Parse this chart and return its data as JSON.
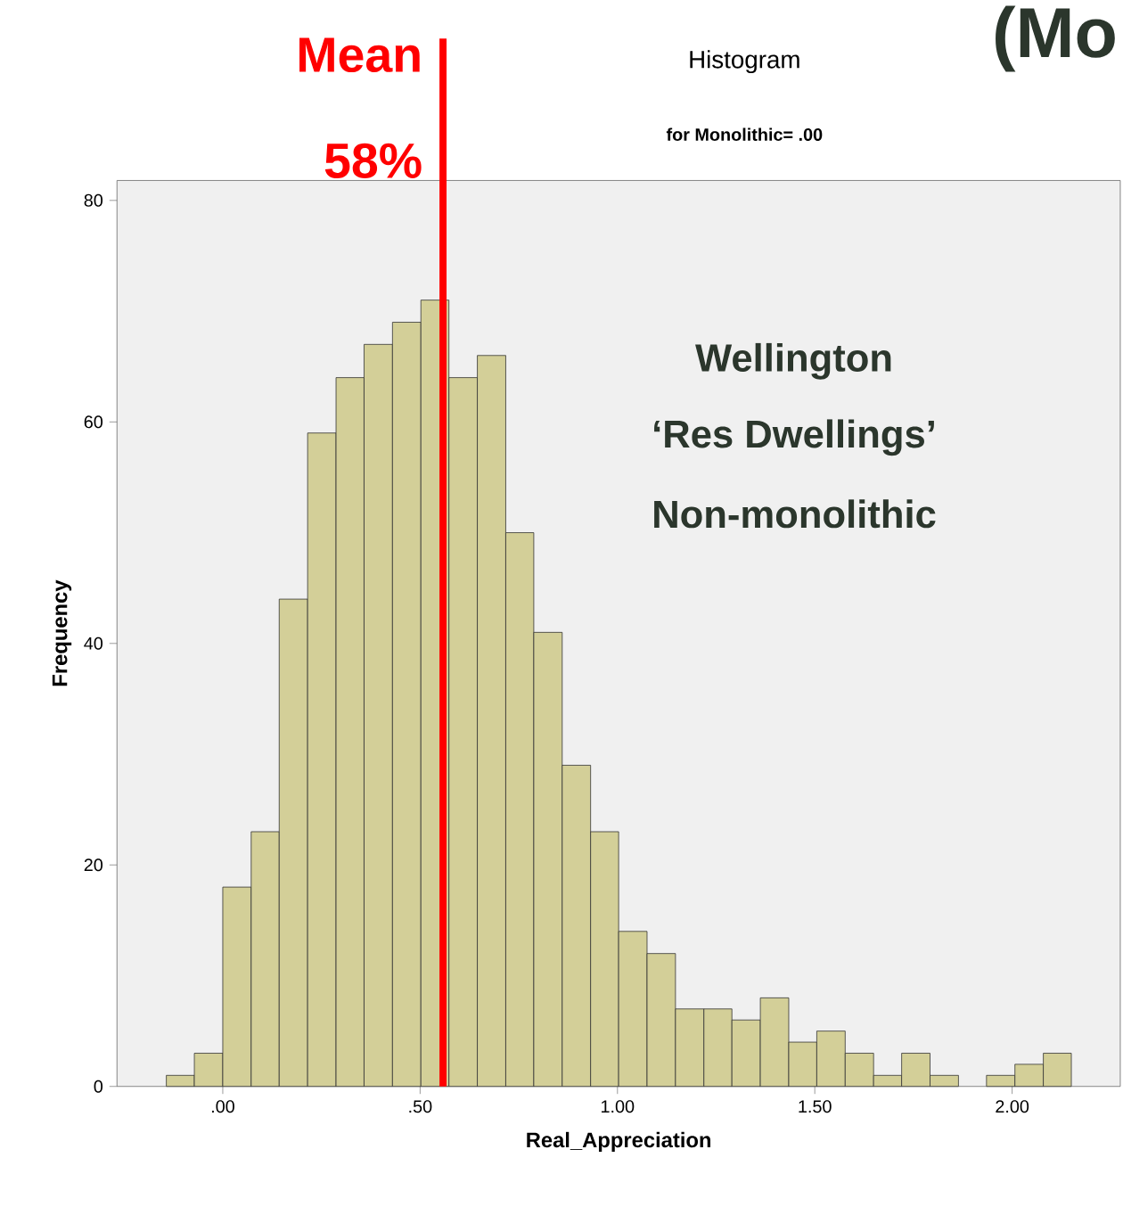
{
  "chart_data": {
    "type": "histogram",
    "title": "Histogram",
    "subtitle": "for Monolithic= .00",
    "xlabel": "Real_Appreciation",
    "ylabel": "Frequency",
    "bins": [
      -0.143,
      -0.072,
      0.0,
      0.072,
      0.143,
      0.215,
      0.287,
      0.358,
      0.43,
      0.502,
      0.573,
      0.645,
      0.717,
      0.788,
      0.86,
      0.932,
      1.003,
      1.075,
      1.147,
      1.219,
      1.29,
      1.362,
      1.434,
      1.505,
      1.577,
      1.649,
      1.72,
      1.792,
      1.864,
      1.935,
      2.007,
      2.079,
      2.15
    ],
    "values": [
      1,
      3,
      18,
      23,
      44,
      59,
      64,
      67,
      69,
      71,
      64,
      66,
      50,
      41,
      29,
      23,
      14,
      12,
      7,
      7,
      6,
      8,
      4,
      5,
      3,
      1,
      3,
      1,
      0,
      1,
      2,
      3
    ],
    "color": "#d3cf98",
    "xlim": [
      -0.268,
      2.274
    ],
    "ylim": [
      0,
      81.8
    ],
    "xticks": [
      {
        "value": 0,
        "label": ".00"
      },
      {
        "value": 0.5,
        "label": ".50"
      },
      {
        "value": 1,
        "label": "1.00"
      },
      {
        "value": 1.5,
        "label": "1.50"
      },
      {
        "value": 2,
        "label": "2.00"
      }
    ],
    "yticks": [
      0,
      20,
      40,
      60,
      80
    ],
    "ref_lines": [
      {
        "axis": "x",
        "value": 0.558,
        "label": "Mean 58%",
        "color": "#ff0000"
      }
    ],
    "annotations": [
      "Wellington",
      "‘Res Dwellings’",
      "Non-monolithic",
      "(Mo"
    ]
  }
}
